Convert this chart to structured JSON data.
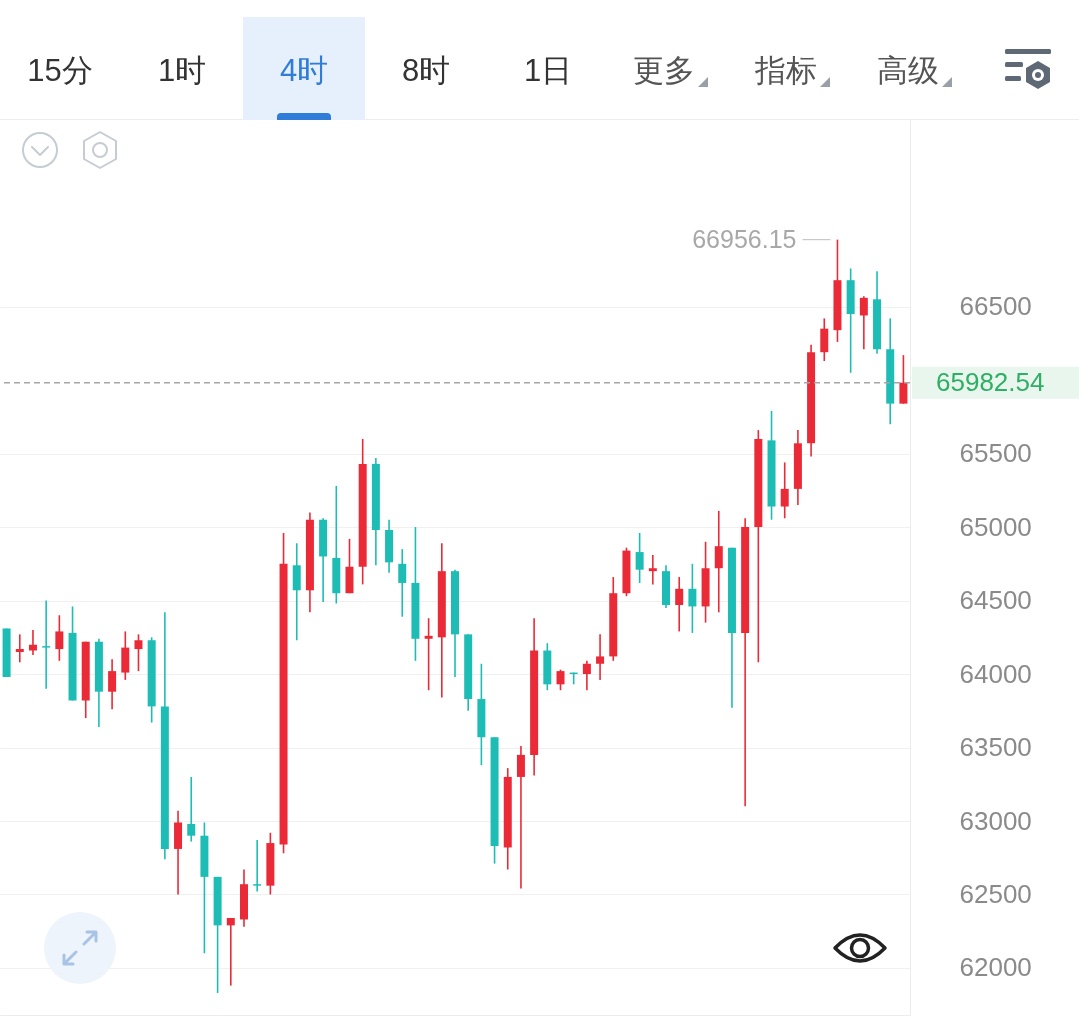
{
  "chart_data": {
    "type": "candlestick",
    "categories": [
      null,
      null,
      null,
      null,
      null,
      null,
      null,
      null,
      null,
      null,
      null,
      null,
      null,
      null,
      null,
      null,
      null,
      null,
      null,
      null,
      null,
      null,
      null,
      null,
      null,
      null,
      null,
      null,
      null,
      null,
      null,
      null,
      null,
      null,
      null,
      null,
      null,
      null,
      null,
      null,
      null,
      null,
      null,
      null,
      null,
      null,
      null,
      null,
      null,
      null,
      null,
      null,
      null,
      null,
      null,
      null,
      null,
      null,
      null,
      null,
      null,
      null,
      null,
      null,
      null,
      null,
      null,
      null,
      null
    ],
    "ohlc": [
      [
        64310,
        64310,
        63980,
        63980
      ],
      [
        64150,
        64270,
        64080,
        64170
      ],
      [
        64160,
        64300,
        64130,
        64200
      ],
      [
        64190,
        64500,
        63900,
        64180
      ],
      [
        64170,
        64400,
        64090,
        64290
      ],
      [
        64280,
        64460,
        63820,
        63820
      ],
      [
        63820,
        64220,
        63700,
        64220
      ],
      [
        64220,
        64240,
        63640,
        63880
      ],
      [
        63880,
        64100,
        63760,
        64020
      ],
      [
        64010,
        64290,
        63960,
        64180
      ],
      [
        64170,
        64270,
        64020,
        64230
      ],
      [
        64230,
        64250,
        63670,
        63780
      ],
      [
        63780,
        64420,
        62740,
        62810
      ],
      [
        62810,
        63070,
        62500,
        62990
      ],
      [
        62980,
        63300,
        62860,
        62900
      ],
      [
        62900,
        62990,
        62100,
        62620
      ],
      [
        62620,
        62620,
        61830,
        62290
      ],
      [
        62290,
        62340,
        61880,
        62340
      ],
      [
        62330,
        62670,
        62280,
        62570
      ],
      [
        62570,
        62870,
        62520,
        62560
      ],
      [
        62560,
        62920,
        62500,
        62850
      ],
      [
        62840,
        64960,
        62780,
        64750
      ],
      [
        64740,
        64890,
        64230,
        64570
      ],
      [
        64570,
        65100,
        64420,
        65050
      ],
      [
        65050,
        65060,
        64490,
        64800
      ],
      [
        64790,
        65280,
        64480,
        64550
      ],
      [
        64550,
        64920,
        64550,
        64730
      ],
      [
        64730,
        65600,
        64610,
        65430
      ],
      [
        65430,
        65470,
        64740,
        64980
      ],
      [
        64980,
        65050,
        64690,
        64760
      ],
      [
        64750,
        64850,
        64390,
        64620
      ],
      [
        64620,
        65000,
        64090,
        64240
      ],
      [
        64240,
        64380,
        63890,
        64260
      ],
      [
        64250,
        64890,
        63840,
        64700
      ],
      [
        64700,
        64710,
        63980,
        64270
      ],
      [
        64270,
        64270,
        63750,
        63830
      ],
      [
        63830,
        64070,
        63380,
        63570
      ],
      [
        63570,
        63570,
        62710,
        62830
      ],
      [
        62820,
        63360,
        62670,
        63300
      ],
      [
        63300,
        63510,
        62540,
        63450
      ],
      [
        63450,
        64380,
        63310,
        64160
      ],
      [
        64160,
        64210,
        63890,
        63930
      ],
      [
        63930,
        64030,
        63890,
        64020
      ],
      [
        64010,
        64010,
        63930,
        64000
      ],
      [
        64000,
        64090,
        63890,
        64070
      ],
      [
        64070,
        64270,
        63960,
        64120
      ],
      [
        64120,
        64660,
        64090,
        64550
      ],
      [
        64550,
        64860,
        64530,
        64840
      ],
      [
        64830,
        64960,
        64620,
        64710
      ],
      [
        64700,
        64810,
        64610,
        64720
      ],
      [
        64700,
        64740,
        64450,
        64470
      ],
      [
        64470,
        64660,
        64290,
        64580
      ],
      [
        64580,
        64750,
        64280,
        64460
      ],
      [
        64460,
        64900,
        64350,
        64720
      ],
      [
        64720,
        65110,
        64420,
        64870
      ],
      [
        64860,
        64860,
        63770,
        64280
      ],
      [
        64280,
        65060,
        63100,
        65000
      ],
      [
        65000,
        65660,
        64080,
        65600
      ],
      [
        65590,
        65790,
        65050,
        65140
      ],
      [
        65140,
        65440,
        65060,
        65260
      ],
      [
        65260,
        65660,
        65150,
        65570
      ],
      [
        65570,
        66240,
        65480,
        66190
      ],
      [
        66190,
        66420,
        66130,
        66350
      ],
      [
        66340,
        66956.15,
        66260,
        66680
      ],
      [
        66680,
        66760,
        66050,
        66450
      ],
      [
        66440,
        66570,
        66210,
        66560
      ],
      [
        66550,
        66740,
        66180,
        66210
      ],
      [
        66210,
        66420,
        65700,
        65840
      ],
      [
        65840,
        66170,
        65840,
        65982.54
      ]
    ],
    "colors": [
      "#1dbdb6",
      "#eb2a37",
      "#eb2a37",
      "#1dbdb6",
      "#eb2a37",
      "#1dbdb6",
      "#eb2a37",
      "#1dbdb6",
      "#eb2a37",
      "#eb2a37",
      "#eb2a37",
      "#1dbdb6",
      "#1dbdb6",
      "#eb2a37",
      "#1dbdb6",
      "#1dbdb6",
      "#1dbdb6",
      "#eb2a37",
      "#eb2a37",
      "#1dbdb6",
      "#eb2a37",
      "#eb2a37",
      "#1dbdb6",
      "#eb2a37",
      "#1dbdb6",
      "#1dbdb6",
      "#eb2a37",
      "#eb2a37",
      "#1dbdb6",
      "#1dbdb6",
      "#1dbdb6",
      "#1dbdb6",
      "#eb2a37",
      "#eb2a37",
      "#1dbdb6",
      "#1dbdb6",
      "#1dbdb6",
      "#1dbdb6",
      "#eb2a37",
      "#eb2a37",
      "#eb2a37",
      "#1dbdb6",
      "#eb2a37",
      "#1dbdb6",
      "#eb2a37",
      "#eb2a37",
      "#eb2a37",
      "#eb2a37",
      "#1dbdb6",
      "#eb2a37",
      "#1dbdb6",
      "#eb2a37",
      "#1dbdb6",
      "#eb2a37",
      "#eb2a37",
      "#1dbdb6",
      "#eb2a37",
      "#eb2a37",
      "#1dbdb6",
      "#eb2a37",
      "#eb2a37",
      "#eb2a37",
      "#eb2a37",
      "#eb2a37",
      "#1dbdb6",
      "#eb2a37",
      "#1dbdb6",
      "#1dbdb6",
      "#eb2a37"
    ],
    "ylim": [
      61680,
      67770
    ],
    "yticks": [
      62000,
      62500,
      63000,
      63500,
      64000,
      64500,
      65000,
      65500,
      66500
    ],
    "grid": "y",
    "tick_labels": "y",
    "ref_lines": [
      {
        "axis": "y",
        "value": 65982.54,
        "label": "65982.54",
        "color": "#a6a6a6",
        "line_style": "dashed"
      }
    ],
    "annotations": [
      "15分",
      "1时",
      "4时",
      "8时",
      "1日",
      "更多",
      "指标",
      "高级",
      "66956.15"
    ]
  }
}
